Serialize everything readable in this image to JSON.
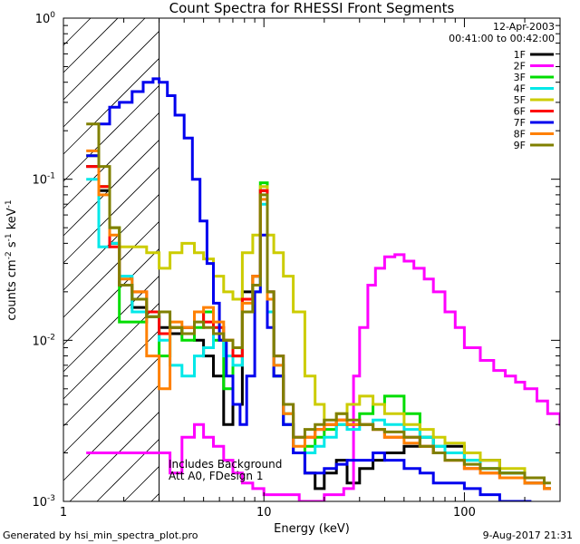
{
  "chart_data": {
    "type": "line",
    "title": "Count Spectra for RHESSI Front Segments",
    "xlabel": "Energy (keV)",
    "ylabel_main": "counts cm",
    "ylabel_sup1": "-2",
    "ylabel_mid": " s",
    "ylabel_sup2": "-1",
    "ylabel_end": " keV",
    "ylabel_sup3": "-1",
    "x_scale": "log",
    "y_scale": "log",
    "xlim": [
      1,
      300
    ],
    "ylim": [
      0.001,
      1
    ],
    "x_ticks": [
      {
        "value": 1,
        "label": "1"
      },
      {
        "value": 10,
        "label": "10"
      },
      {
        "value": 100,
        "label": "100"
      }
    ],
    "y_ticks": [
      {
        "value": 0.001,
        "base": "10",
        "exp": "-3"
      },
      {
        "value": 0.01,
        "base": "10",
        "exp": "-2"
      },
      {
        "value": 0.1,
        "base": "10",
        "exp": "-1"
      },
      {
        "value": 1,
        "base": "10",
        "exp": "0"
      }
    ],
    "date_label": "12-Apr-2003",
    "time_range": "00:41:00 to 00:42:00",
    "attenuator_threshold_kev": 3,
    "notes": [
      "Includes Background",
      "Att A0, FDesign 1"
    ],
    "footer_left": "Generated by hsi_min_spectra_plot.pro",
    "footer_right": "9-Aug-2017 21:31",
    "series": [
      {
        "name": "1F",
        "color": "#000000",
        "e": [
          1.3,
          1.5,
          1.7,
          1.9,
          2.2,
          2.6,
          3.0,
          3.4,
          3.9,
          4.5,
          5.0,
          5.6,
          6.3,
          7.0,
          7.8,
          8.8,
          9.6,
          10.4,
          11.2,
          12.5,
          14,
          16,
          18,
          20,
          23,
          26,
          30,
          35,
          40,
          50,
          60,
          70,
          80,
          100,
          120,
          150,
          200,
          250
        ],
        "v": [
          0.12,
          0.085,
          0.04,
          0.022,
          0.016,
          0.014,
          0.012,
          0.011,
          0.012,
          0.01,
          0.008,
          0.006,
          0.003,
          0.004,
          0.02,
          0.025,
          0.085,
          0.02,
          0.006,
          0.003,
          0.002,
          0.0015,
          0.0012,
          0.0015,
          0.0018,
          0.0013,
          0.0016,
          0.0018,
          0.002,
          0.0022,
          0.0025,
          0.002,
          0.0022,
          0.002,
          0.0018,
          0.0015,
          0.0013,
          0.0012
        ]
      },
      {
        "name": "2F",
        "color": "#ff00ff",
        "e": [
          1.3,
          1.5,
          3.4,
          3.9,
          4.5,
          5.0,
          5.6,
          6.3,
          7.0,
          7.8,
          8.8,
          10,
          12,
          15,
          20,
          25,
          28,
          30,
          33,
          36,
          40,
          45,
          50,
          56,
          63,
          70,
          80,
          90,
          100,
          120,
          140,
          160,
          180,
          200,
          230,
          260,
          300
        ],
        "v": [
          0.002,
          0.002,
          0.0015,
          0.0025,
          0.003,
          0.0025,
          0.0022,
          0.0018,
          0.0015,
          0.0013,
          0.0012,
          0.0011,
          0.0011,
          0.001,
          0.0011,
          0.0012,
          0.006,
          0.012,
          0.022,
          0.028,
          0.033,
          0.034,
          0.031,
          0.028,
          0.024,
          0.02,
          0.015,
          0.012,
          0.009,
          0.0075,
          0.0065,
          0.006,
          0.0055,
          0.005,
          0.0042,
          0.0035,
          0.003
        ]
      },
      {
        "name": "3F",
        "color": "#00dd00",
        "e": [
          1.3,
          1.5,
          1.7,
          1.9,
          2.2,
          2.6,
          3.0,
          3.4,
          3.9,
          4.5,
          5.0,
          5.6,
          6.3,
          7.0,
          7.8,
          8.8,
          9.6,
          10.4,
          11.2,
          12.5,
          14,
          16,
          18,
          20,
          23,
          26,
          30,
          35,
          40,
          50,
          60,
          70,
          80,
          100,
          120,
          150,
          200,
          250
        ],
        "v": [
          0.14,
          0.09,
          0.05,
          0.013,
          0.013,
          0.014,
          0.008,
          0.012,
          0.01,
          0.012,
          0.015,
          0.01,
          0.005,
          0.008,
          0.018,
          0.025,
          0.095,
          0.015,
          0.006,
          0.0035,
          0.002,
          0.0022,
          0.0025,
          0.0028,
          0.003,
          0.003,
          0.0035,
          0.004,
          0.0045,
          0.0035,
          0.0025,
          0.0022,
          0.002,
          0.0018,
          0.0016,
          0.0015,
          0.0013,
          0.0012
        ]
      },
      {
        "name": "4F",
        "color": "#00e8e8",
        "e": [
          1.3,
          1.5,
          1.7,
          1.9,
          2.2,
          2.6,
          3.0,
          3.4,
          3.9,
          4.5,
          5.0,
          5.6,
          6.3,
          7.0,
          7.8,
          8.8,
          9.6,
          10.4,
          11.2,
          12.5,
          14,
          16,
          18,
          20,
          23,
          26,
          30,
          35,
          40,
          50,
          60,
          70,
          80,
          100,
          120,
          150,
          200,
          250
        ],
        "v": [
          0.1,
          0.038,
          0.04,
          0.025,
          0.015,
          0.014,
          0.01,
          0.007,
          0.006,
          0.008,
          0.009,
          0.012,
          0.008,
          0.007,
          0.015,
          0.02,
          0.07,
          0.015,
          0.007,
          0.003,
          0.002,
          0.002,
          0.0022,
          0.0025,
          0.003,
          0.0028,
          0.003,
          0.0032,
          0.003,
          0.0028,
          0.0025,
          0.0022,
          0.002,
          0.0018,
          0.0016,
          0.0015,
          0.0013,
          0.0012
        ]
      },
      {
        "name": "5F",
        "color": "#cccc00",
        "e": [
          1.3,
          1.5,
          1.7,
          1.9,
          2.2,
          2.6,
          3.0,
          3.4,
          3.9,
          4.5,
          5.0,
          5.6,
          6.3,
          7.0,
          7.8,
          8.8,
          9.6,
          10.4,
          11.2,
          12.5,
          14,
          16,
          18,
          20,
          23,
          26,
          30,
          35,
          40,
          50,
          60,
          70,
          80,
          100,
          120,
          150,
          200,
          250
        ],
        "v": [
          0.14,
          0.09,
          0.05,
          0.038,
          0.038,
          0.035,
          0.028,
          0.035,
          0.04,
          0.035,
          0.032,
          0.025,
          0.02,
          0.018,
          0.035,
          0.045,
          0.09,
          0.045,
          0.035,
          0.025,
          0.015,
          0.006,
          0.004,
          0.003,
          0.0035,
          0.004,
          0.0045,
          0.004,
          0.0035,
          0.003,
          0.0028,
          0.0025,
          0.0023,
          0.002,
          0.0018,
          0.0016,
          0.0014,
          0.0012
        ]
      },
      {
        "name": "6F",
        "color": "#ff0000",
        "e": [
          1.3,
          1.5,
          1.7,
          1.9,
          2.2,
          2.6,
          3.0,
          3.4,
          3.9,
          4.5,
          5.0,
          5.6,
          6.3,
          7.0,
          7.8,
          8.8,
          9.6,
          10.4,
          11.2,
          12.5,
          14,
          16,
          18,
          20,
          23,
          26,
          30,
          35,
          40,
          50,
          60,
          70,
          80,
          100,
          120,
          150,
          200,
          250
        ],
        "v": [
          0.12,
          0.09,
          0.038,
          0.022,
          0.02,
          0.015,
          0.011,
          0.012,
          0.012,
          0.015,
          0.013,
          0.012,
          0.01,
          0.008,
          0.018,
          0.025,
          0.085,
          0.02,
          0.008,
          0.004,
          0.0025,
          0.0025,
          0.0028,
          0.003,
          0.0032,
          0.003,
          0.003,
          0.0028,
          0.0025,
          0.0025,
          0.0022,
          0.002,
          0.0018,
          0.0016,
          0.0015,
          0.0014,
          0.0013,
          0.0012
        ]
      },
      {
        "name": "7F",
        "color": "#0000ee",
        "e": [
          1.3,
          1.5,
          1.7,
          1.9,
          2.2,
          2.5,
          2.8,
          3.0,
          3.3,
          3.6,
          4.0,
          4.4,
          4.8,
          5.2,
          5.6,
          6.0,
          6.5,
          7.0,
          7.6,
          8.2,
          9.0,
          9.6,
          10.4,
          11.2,
          12.5,
          14,
          16,
          18,
          20,
          23,
          26,
          30,
          35,
          40,
          50,
          60,
          70,
          80,
          100,
          120,
          150,
          200
        ],
        "v": [
          0.14,
          0.22,
          0.28,
          0.3,
          0.35,
          0.4,
          0.42,
          0.4,
          0.33,
          0.25,
          0.18,
          0.1,
          0.055,
          0.03,
          0.017,
          0.01,
          0.006,
          0.004,
          0.003,
          0.006,
          0.02,
          0.045,
          0.012,
          0.006,
          0.003,
          0.002,
          0.0015,
          0.0015,
          0.0016,
          0.0017,
          0.0018,
          0.0018,
          0.002,
          0.0018,
          0.0016,
          0.0015,
          0.0013,
          0.0013,
          0.0012,
          0.0011,
          0.001,
          0.001
        ]
      },
      {
        "name": "8F",
        "color": "#ff8000",
        "e": [
          1.3,
          1.5,
          1.7,
          1.9,
          2.2,
          2.6,
          3.0,
          3.4,
          3.9,
          4.5,
          5.0,
          5.6,
          6.3,
          7.0,
          7.8,
          8.8,
          9.6,
          10.4,
          11.2,
          12.5,
          14,
          16,
          18,
          20,
          23,
          26,
          30,
          35,
          40,
          50,
          60,
          70,
          80,
          100,
          120,
          150,
          200,
          250
        ],
        "v": [
          0.15,
          0.08,
          0.045,
          0.024,
          0.02,
          0.008,
          0.005,
          0.013,
          0.012,
          0.015,
          0.016,
          0.013,
          0.01,
          0.009,
          0.017,
          0.025,
          0.075,
          0.018,
          0.007,
          0.0035,
          0.0022,
          0.0025,
          0.0028,
          0.003,
          0.0032,
          0.003,
          0.003,
          0.0028,
          0.0025,
          0.0023,
          0.0022,
          0.002,
          0.0018,
          0.0016,
          0.0015,
          0.0014,
          0.0013,
          0.0012
        ]
      },
      {
        "name": "9F",
        "color": "#808000",
        "e": [
          1.3,
          1.5,
          1.7,
          1.9,
          2.2,
          2.6,
          3.0,
          3.4,
          3.9,
          4.5,
          5.0,
          5.6,
          6.3,
          7.0,
          7.8,
          8.8,
          9.6,
          10.4,
          11.2,
          12.5,
          14,
          16,
          18,
          20,
          23,
          26,
          30,
          35,
          40,
          50,
          60,
          70,
          80,
          100,
          120,
          150,
          200,
          250
        ],
        "v": [
          0.22,
          0.12,
          0.05,
          0.022,
          0.018,
          0.014,
          0.015,
          0.012,
          0.011,
          0.013,
          0.012,
          0.011,
          0.01,
          0.009,
          0.015,
          0.022,
          0.08,
          0.02,
          0.008,
          0.004,
          0.0025,
          0.0028,
          0.003,
          0.0032,
          0.0035,
          0.0032,
          0.003,
          0.0028,
          0.0027,
          0.0025,
          0.0022,
          0.002,
          0.0018,
          0.0017,
          0.0016,
          0.0015,
          0.0014,
          0.0013
        ]
      }
    ]
  }
}
